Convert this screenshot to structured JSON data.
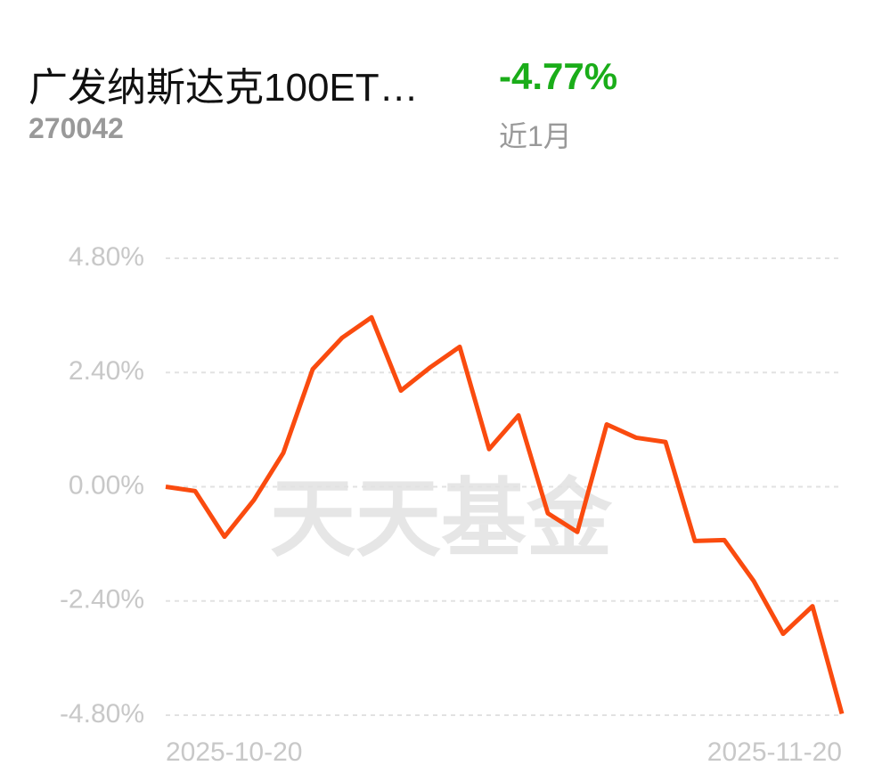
{
  "header": {
    "fund_name": "广发纳斯达克100ET…",
    "fund_code": "270042",
    "return": "-4.77%",
    "period": "近1月"
  },
  "chart_data": {
    "type": "line",
    "watermark": "天天基金",
    "x": [
      "2025-10-20",
      null,
      null,
      null,
      null,
      null,
      null,
      null,
      null,
      null,
      null,
      null,
      null,
      null,
      null,
      null,
      null,
      null,
      null,
      null,
      null,
      null,
      null,
      "2025-11-20"
    ],
    "series": [
      {
        "color": "#fa4b0f",
        "values": [
          0.0,
          -0.09,
          -1.05,
          -0.28,
          0.71,
          2.47,
          3.13,
          3.56,
          2.02,
          2.51,
          2.94,
          0.79,
          1.5,
          -0.56,
          -0.95,
          1.31,
          1.03,
          0.94,
          -1.14,
          -1.12,
          -1.98,
          -3.09,
          -2.51,
          -4.77
        ]
      }
    ],
    "ylim": [
      -4.8,
      4.8
    ],
    "yticks": [
      {
        "value": 4.8,
        "label": "4.80%"
      },
      {
        "value": 2.4,
        "label": "2.40%"
      },
      {
        "value": 0,
        "label": "0.00%"
      },
      {
        "value": -2.4,
        "label": "-2.40%"
      },
      {
        "value": -4.8,
        "label": "-4.80%"
      }
    ],
    "grid": true
  }
}
